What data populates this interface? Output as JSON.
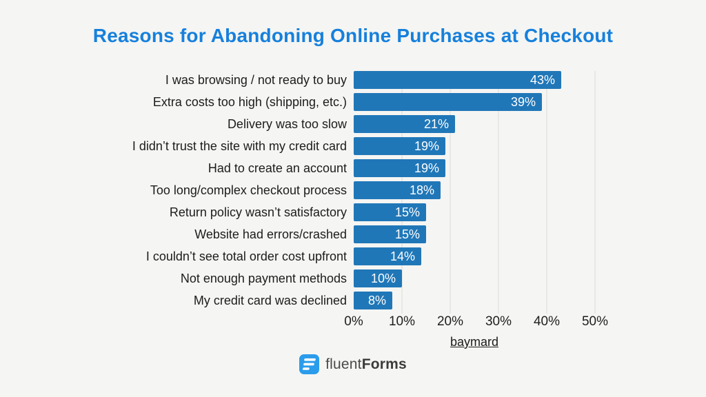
{
  "title": "Reasons for Abandoning Online Purchases at Checkout",
  "chart_data": {
    "type": "bar",
    "orientation": "horizontal",
    "title": "Reasons for Abandoning Online Purchases at Checkout",
    "categories": [
      "I was browsing / not ready to buy",
      "Extra costs too high (shipping, etc.)",
      "Delivery was too slow",
      "I didn’t trust the site with my credit card",
      "Had to create an account",
      "Too long/complex checkout process",
      "Return policy wasn’t satisfactory",
      "Website had errors/crashed",
      "I couldn’t see total order cost upfront",
      "Not enough payment methods",
      "My credit card was declined"
    ],
    "values": [
      43,
      39,
      21,
      19,
      19,
      18,
      15,
      15,
      14,
      10,
      8
    ],
    "unit": "%",
    "x_ticks": [
      "0%",
      "10%",
      "20%",
      "30%",
      "40%",
      "50%"
    ],
    "xlim": [
      0,
      50
    ],
    "grid": "vertical gridlines every 10%",
    "legend": "none",
    "bar_color": "#2077b8",
    "value_label_color": "#ffffff",
    "value_label_position": "inside-end"
  },
  "source": {
    "label": "baymard"
  },
  "brand": {
    "name_regular": "fluent",
    "name_bold": "Forms",
    "icon": "fluent-forms-logo-icon",
    "icon_color": "#2b9ceb"
  },
  "colors": {
    "background": "#f5f5f3",
    "title": "#1680dc",
    "bar": "#2077b8",
    "label_text": "#1c1c1c",
    "grid": "#e8e8e5"
  }
}
